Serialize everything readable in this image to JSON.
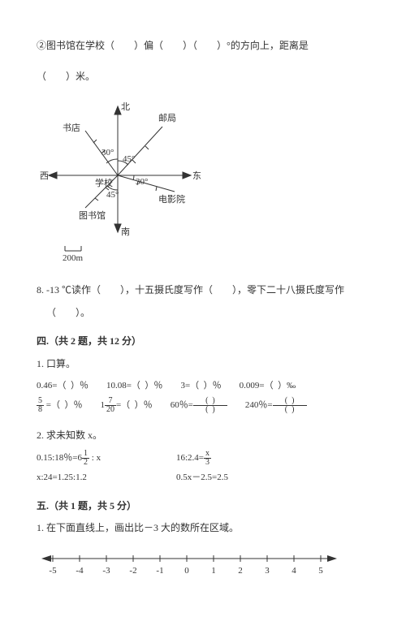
{
  "q2": {
    "prefix": "②图书馆在学校（",
    "mid1": "）偏（",
    "mid2": "）（",
    "mid3": "）°的方向上，距离是",
    "line2": "（　　）米。"
  },
  "compass": {
    "labels": {
      "north": "北",
      "south": "南",
      "east": "东",
      "west": "西"
    },
    "places": {
      "post": "邮局",
      "bookstore": "书店",
      "school": "学校",
      "cinema": "电影院",
      "library": "图书馆"
    },
    "angles": {
      "nw": "30°",
      "ne": "45°",
      "e": "30°",
      "sw": "45°"
    },
    "scale_value": "200m",
    "colors": {
      "stroke": "#333333",
      "text": "#333333"
    }
  },
  "q8": {
    "text_a": "8. -13 ℃读作（　　），十五摄氏度写作（　　），零下二十八摄氏度写作",
    "text_b": "（　　）。"
  },
  "sec4": {
    "head": "四.（共 2 题，共 12 分）",
    "q1": "1. 口算。",
    "r1": {
      "a_l": "0.46=（ ）％",
      "b_l": "10.08=（ ）％",
      "c_l": "3=（ ）％",
      "d_l": "0.009=（ ）‰"
    },
    "r2": {
      "a_frac_n": "5",
      "a_frac_d": "8",
      "a_suf": " =（ ）％",
      "b_pre": "1",
      "b_frac_n": "7",
      "b_frac_d": "20",
      "b_suf": "=（ ）％",
      "c_l": "60％=",
      "d_l": "240％="
    },
    "q2": "2. 求未知数 x。",
    "eq": {
      "a_pre": "0.15:18％=6",
      "a_frac_n": "1",
      "a_frac_d": "2",
      "a_suf": " : x",
      "b_pre": "16:2.4=",
      "b_frac_n": "x",
      "b_frac_d": "3",
      "c": "x:24=1.25:1.2",
      "d": "0.5x－2.5=2.5"
    }
  },
  "sec5": {
    "head": "五.（共 1 题，共 5 分）",
    "q1": "1. 在下面直线上，画出比－3 大的数所在区域。"
  },
  "numline": {
    "ticks": [
      "-5",
      "-4",
      "-3",
      "-2",
      "-1",
      "0",
      "1",
      "2",
      "3",
      "4",
      "5"
    ],
    "stroke": "#333333",
    "fontsize": 11
  }
}
